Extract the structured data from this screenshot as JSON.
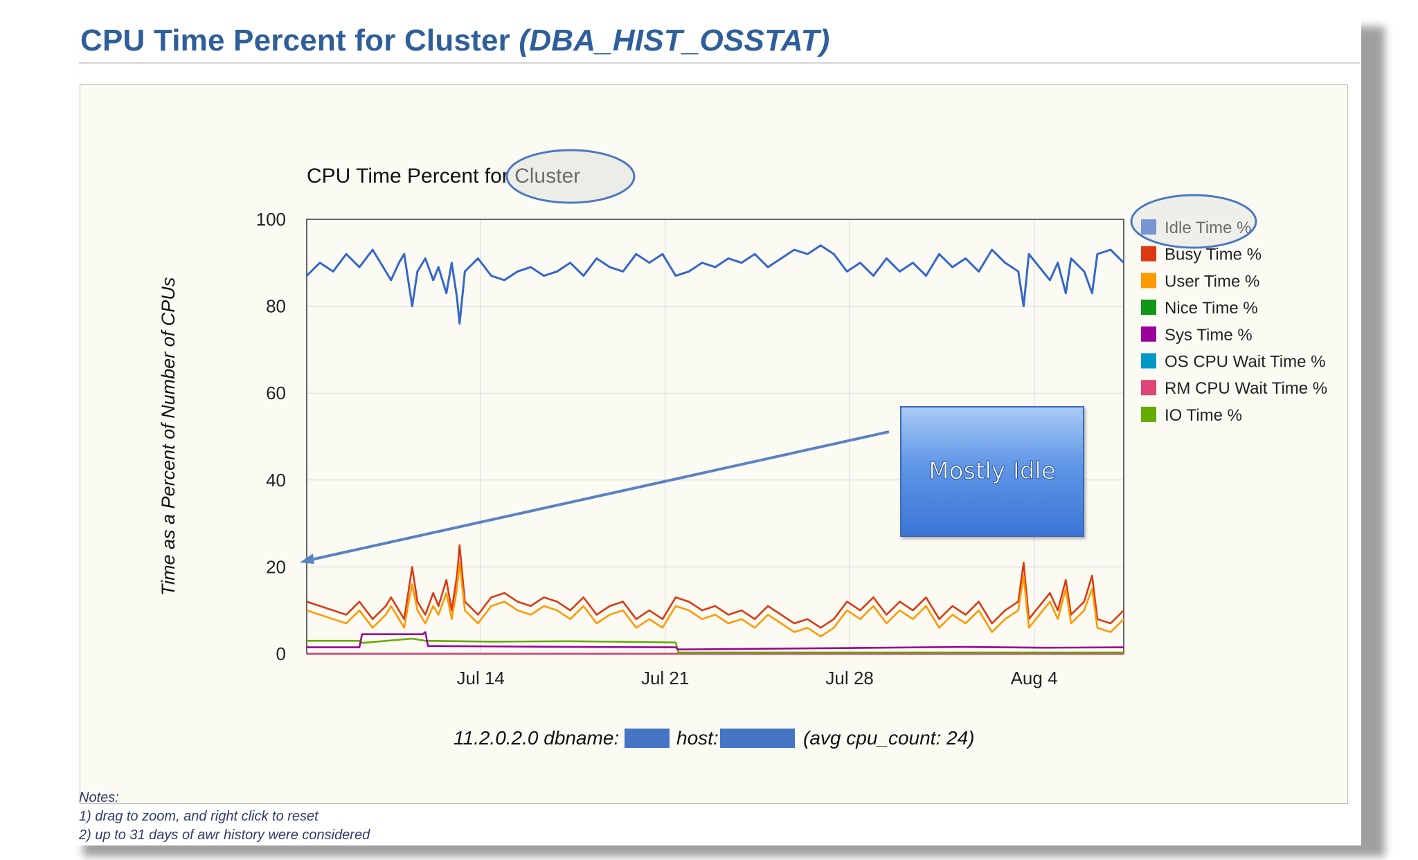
{
  "page": {
    "title_main": "CPU Time Percent for Cluster",
    "title_sub": "(DBA_HIST_OSSTAT)"
  },
  "chart_data": {
    "type": "line",
    "title": "CPU Time Percent for Cluster",
    "ylabel": "Time as a Percent of Number of CPUs",
    "xlabel": "",
    "subtitle_parts": [
      "11.2.0.2.0 dbname:",
      "host:",
      "(avg cpu_count: 24)"
    ],
    "x_domain_days": [
      0,
      31
    ],
    "x_ticks": [
      {
        "label": "Jul 14",
        "day": 6.6
      },
      {
        "label": "Jul 21",
        "day": 13.6
      },
      {
        "label": "Jul 28",
        "day": 20.6
      },
      {
        "label": "Aug 4",
        "day": 27.6
      }
    ],
    "ylim": [
      0,
      100
    ],
    "y_ticks": [
      0,
      20,
      40,
      60,
      80,
      100
    ],
    "grid": true,
    "legend_position": "right",
    "series": [
      {
        "name": "Idle Time %",
        "color": "#3466cc",
        "points": [
          [
            0,
            87
          ],
          [
            0.5,
            90
          ],
          [
            1,
            88
          ],
          [
            1.5,
            92
          ],
          [
            2,
            89
          ],
          [
            2.5,
            93
          ],
          [
            3,
            88
          ],
          [
            3.2,
            86
          ],
          [
            3.5,
            90
          ],
          [
            3.7,
            92
          ],
          [
            3.9,
            84
          ],
          [
            4,
            80
          ],
          [
            4.2,
            88
          ],
          [
            4.5,
            91
          ],
          [
            4.8,
            86
          ],
          [
            5,
            89
          ],
          [
            5.3,
            83
          ],
          [
            5.5,
            90
          ],
          [
            5.7,
            82
          ],
          [
            5.8,
            76
          ],
          [
            6,
            88
          ],
          [
            6.5,
            91
          ],
          [
            7,
            87
          ],
          [
            7.5,
            86
          ],
          [
            8,
            88
          ],
          [
            8.5,
            89
          ],
          [
            9,
            87
          ],
          [
            9.5,
            88
          ],
          [
            10,
            90
          ],
          [
            10.5,
            87
          ],
          [
            11,
            91
          ],
          [
            11.5,
            89
          ],
          [
            12,
            88
          ],
          [
            12.5,
            92
          ],
          [
            13,
            90
          ],
          [
            13.5,
            92
          ],
          [
            14,
            87
          ],
          [
            14.5,
            88
          ],
          [
            15,
            90
          ],
          [
            15.5,
            89
          ],
          [
            16,
            91
          ],
          [
            16.5,
            90
          ],
          [
            17,
            92
          ],
          [
            17.5,
            89
          ],
          [
            18,
            91
          ],
          [
            18.5,
            93
          ],
          [
            19,
            92
          ],
          [
            19.5,
            94
          ],
          [
            20,
            92
          ],
          [
            20.5,
            88
          ],
          [
            21,
            90
          ],
          [
            21.5,
            87
          ],
          [
            22,
            91
          ],
          [
            22.5,
            88
          ],
          [
            23,
            90
          ],
          [
            23.5,
            87
          ],
          [
            24,
            92
          ],
          [
            24.5,
            89
          ],
          [
            25,
            91
          ],
          [
            25.5,
            88
          ],
          [
            26,
            93
          ],
          [
            26.5,
            90
          ],
          [
            27,
            88
          ],
          [
            27.2,
            80
          ],
          [
            27.4,
            92
          ],
          [
            27.8,
            89
          ],
          [
            28.2,
            86
          ],
          [
            28.5,
            90
          ],
          [
            28.8,
            83
          ],
          [
            29,
            91
          ],
          [
            29.5,
            88
          ],
          [
            29.8,
            83
          ],
          [
            30,
            92
          ],
          [
            30.5,
            93
          ],
          [
            31,
            90
          ]
        ]
      },
      {
        "name": "Busy Time %",
        "color": "#dc3912",
        "points": [
          [
            0,
            12
          ],
          [
            0.5,
            11
          ],
          [
            1,
            10
          ],
          [
            1.5,
            9
          ],
          [
            2,
            12
          ],
          [
            2.5,
            8
          ],
          [
            3,
            11
          ],
          [
            3.2,
            13
          ],
          [
            3.5,
            10
          ],
          [
            3.7,
            8
          ],
          [
            3.9,
            16
          ],
          [
            4,
            20
          ],
          [
            4.2,
            12
          ],
          [
            4.5,
            9
          ],
          [
            4.8,
            14
          ],
          [
            5,
            11
          ],
          [
            5.3,
            17
          ],
          [
            5.5,
            10
          ],
          [
            5.7,
            18
          ],
          [
            5.8,
            25
          ],
          [
            6,
            12
          ],
          [
            6.5,
            9
          ],
          [
            7,
            13
          ],
          [
            7.5,
            14
          ],
          [
            8,
            12
          ],
          [
            8.5,
            11
          ],
          [
            9,
            13
          ],
          [
            9.5,
            12
          ],
          [
            10,
            10
          ],
          [
            10.5,
            13
          ],
          [
            11,
            9
          ],
          [
            11.5,
            11
          ],
          [
            12,
            12
          ],
          [
            12.5,
            8
          ],
          [
            13,
            10
          ],
          [
            13.5,
            8
          ],
          [
            14,
            13
          ],
          [
            14.5,
            12
          ],
          [
            15,
            10
          ],
          [
            15.5,
            11
          ],
          [
            16,
            9
          ],
          [
            16.5,
            10
          ],
          [
            17,
            8
          ],
          [
            17.5,
            11
          ],
          [
            18,
            9
          ],
          [
            18.5,
            7
          ],
          [
            19,
            8
          ],
          [
            19.5,
            6
          ],
          [
            20,
            8
          ],
          [
            20.5,
            12
          ],
          [
            21,
            10
          ],
          [
            21.5,
            13
          ],
          [
            22,
            9
          ],
          [
            22.5,
            12
          ],
          [
            23,
            10
          ],
          [
            23.5,
            13
          ],
          [
            24,
            8
          ],
          [
            24.5,
            11
          ],
          [
            25,
            9
          ],
          [
            25.5,
            12
          ],
          [
            26,
            7
          ],
          [
            26.5,
            10
          ],
          [
            27,
            12
          ],
          [
            27.2,
            21
          ],
          [
            27.4,
            8
          ],
          [
            27.8,
            11
          ],
          [
            28.2,
            14
          ],
          [
            28.5,
            10
          ],
          [
            28.8,
            17
          ],
          [
            29,
            9
          ],
          [
            29.5,
            12
          ],
          [
            29.8,
            18
          ],
          [
            30,
            8
          ],
          [
            30.5,
            7
          ],
          [
            31,
            10
          ]
        ]
      },
      {
        "name": "User Time %",
        "color": "#ff9900",
        "points": [
          [
            0,
            10
          ],
          [
            0.5,
            9
          ],
          [
            1,
            8
          ],
          [
            1.5,
            7
          ],
          [
            2,
            10
          ],
          [
            2.5,
            6
          ],
          [
            3,
            9
          ],
          [
            3.2,
            11
          ],
          [
            3.5,
            8
          ],
          [
            3.7,
            6
          ],
          [
            3.9,
            13
          ],
          [
            4,
            16
          ],
          [
            4.2,
            10
          ],
          [
            4.5,
            7
          ],
          [
            4.8,
            11
          ],
          [
            5,
            9
          ],
          [
            5.3,
            14
          ],
          [
            5.5,
            8
          ],
          [
            5.7,
            15
          ],
          [
            5.8,
            21
          ],
          [
            6,
            10
          ],
          [
            6.5,
            7
          ],
          [
            7,
            11
          ],
          [
            7.5,
            12
          ],
          [
            8,
            10
          ],
          [
            8.5,
            9
          ],
          [
            9,
            11
          ],
          [
            9.5,
            10
          ],
          [
            10,
            8
          ],
          [
            10.5,
            11
          ],
          [
            11,
            7
          ],
          [
            11.5,
            9
          ],
          [
            12,
            10
          ],
          [
            12.5,
            6
          ],
          [
            13,
            8
          ],
          [
            13.5,
            6
          ],
          [
            14,
            11
          ],
          [
            14.5,
            10
          ],
          [
            15,
            8
          ],
          [
            15.5,
            9
          ],
          [
            16,
            7
          ],
          [
            16.5,
            8
          ],
          [
            17,
            6
          ],
          [
            17.5,
            9
          ],
          [
            18,
            7
          ],
          [
            18.5,
            5
          ],
          [
            19,
            6
          ],
          [
            19.5,
            4
          ],
          [
            20,
            6
          ],
          [
            20.5,
            10
          ],
          [
            21,
            8
          ],
          [
            21.5,
            11
          ],
          [
            22,
            7
          ],
          [
            22.5,
            10
          ],
          [
            23,
            8
          ],
          [
            23.5,
            11
          ],
          [
            24,
            6
          ],
          [
            24.5,
            9
          ],
          [
            25,
            7
          ],
          [
            25.5,
            10
          ],
          [
            26,
            5
          ],
          [
            26.5,
            8
          ],
          [
            27,
            10
          ],
          [
            27.2,
            18
          ],
          [
            27.4,
            6
          ],
          [
            27.8,
            9
          ],
          [
            28.2,
            12
          ],
          [
            28.5,
            8
          ],
          [
            28.8,
            15
          ],
          [
            29,
            7
          ],
          [
            29.5,
            10
          ],
          [
            29.8,
            15
          ],
          [
            30,
            6
          ],
          [
            30.5,
            5
          ],
          [
            31,
            8
          ]
        ]
      },
      {
        "name": "Nice Time %",
        "color": "#109618",
        "points": [
          [
            0,
            0
          ],
          [
            31,
            0
          ]
        ]
      },
      {
        "name": "Sys Time %",
        "color": "#990099",
        "points": [
          [
            0,
            1.5
          ],
          [
            2,
            1.5
          ],
          [
            2.1,
            4.5
          ],
          [
            4.4,
            4.5
          ],
          [
            4.5,
            5
          ],
          [
            4.6,
            1.8
          ],
          [
            10,
            1.6
          ],
          [
            14,
            1.5
          ],
          [
            14.1,
            1
          ],
          [
            20,
            1.3
          ],
          [
            25,
            1.6
          ],
          [
            28,
            1.4
          ],
          [
            31,
            1.5
          ]
        ]
      },
      {
        "name": "OS CPU Wait Time %",
        "color": "#0099c6",
        "points": [
          [
            0,
            0
          ],
          [
            31,
            0
          ]
        ]
      },
      {
        "name": "RM CPU Wait Time %",
        "color": "#dd4477",
        "points": [
          [
            0,
            0
          ],
          [
            31,
            0
          ]
        ]
      },
      {
        "name": "IO Time %",
        "color": "#66aa00",
        "points": [
          [
            0,
            3
          ],
          [
            2,
            3
          ],
          [
            2.1,
            2.5
          ],
          [
            4,
            3.5
          ],
          [
            4.5,
            3
          ],
          [
            7,
            2.8
          ],
          [
            10,
            2.9
          ],
          [
            13,
            2.7
          ],
          [
            14,
            2.6
          ],
          [
            14.1,
            0.3
          ],
          [
            31,
            0.3
          ]
        ]
      }
    ]
  },
  "annotations": {
    "callout_text": "Mostly Idle"
  },
  "notes": {
    "header": "Notes:",
    "line1": "1) drag to zoom, and right click to reset",
    "line2": "2) up to 31 days of awr history were considered"
  }
}
